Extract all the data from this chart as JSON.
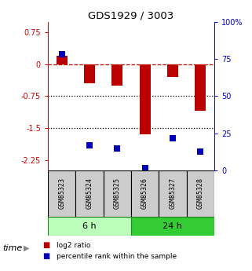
{
  "title": "GDS1929 / 3003",
  "samples": [
    "GSM85323",
    "GSM85324",
    "GSM85325",
    "GSM85326",
    "GSM85327",
    "GSM85328"
  ],
  "log2_ratio": [
    0.2,
    -0.45,
    -0.5,
    -1.65,
    -0.3,
    -1.1
  ],
  "percentile_rank": [
    78,
    17,
    15,
    2,
    22,
    13
  ],
  "ylim_left": [
    -2.5,
    1.0
  ],
  "ylim_right": [
    0,
    100
  ],
  "yticks_left": [
    0.75,
    0,
    -0.75,
    -1.5,
    -2.25
  ],
  "yticks_right": [
    100,
    75,
    50,
    25,
    0
  ],
  "bar_color": "#bb0000",
  "dot_color": "#0000bb",
  "bar_width": 0.4,
  "dot_size": 28,
  "group_labels": [
    "6 h",
    "24 h"
  ],
  "group_colors": [
    "#bbffbb",
    "#33cc33"
  ],
  "time_label": "time",
  "legend_labels": [
    "log2 ratio",
    "percentile rank within the sample"
  ],
  "legend_colors": [
    "#bb0000",
    "#0000bb"
  ],
  "left_axis_color": "#cc0000",
  "right_axis_color": "#0000cc",
  "box_bg": "#cccccc",
  "bg_color": "#ffffff"
}
